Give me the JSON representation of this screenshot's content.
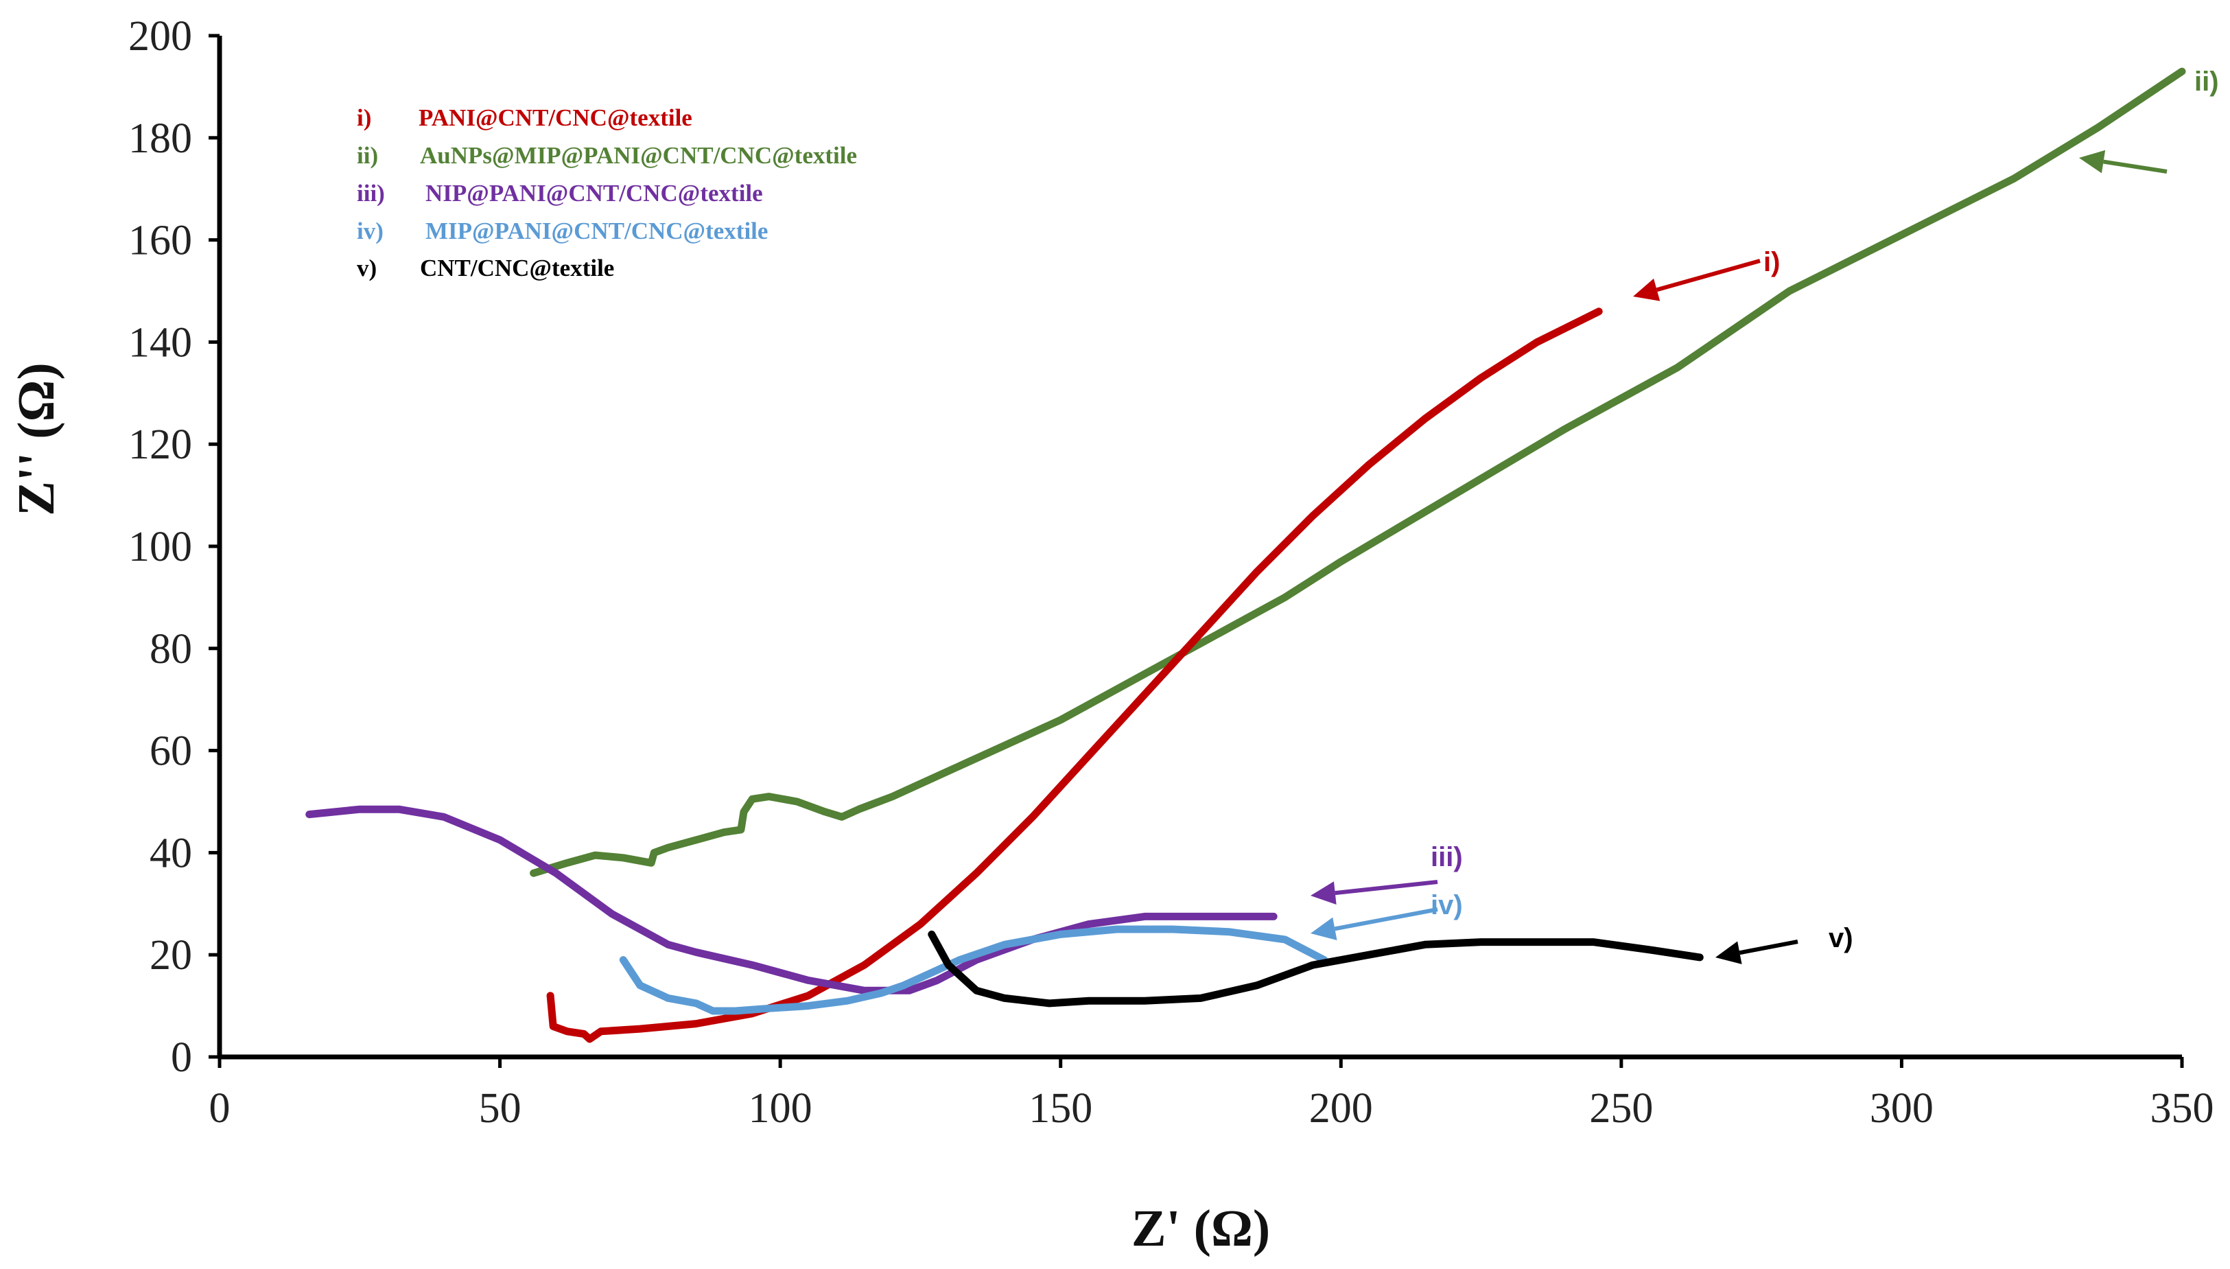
{
  "chart_data": {
    "type": "line",
    "title": "",
    "xlabel": "Z' (Ω)",
    "ylabel": "Z'' (Ω)",
    "xlim": [
      0,
      350
    ],
    "ylim": [
      0,
      200
    ],
    "xticks": [
      0,
      50,
      100,
      150,
      200,
      250,
      300,
      350
    ],
    "yticks": [
      0,
      20,
      40,
      60,
      80,
      100,
      120,
      140,
      160,
      180,
      200
    ],
    "grid": false,
    "legend_position": "top-left",
    "series": [
      {
        "id": "i",
        "label": "i)",
        "name": "PANI@CNT/CNC@textile",
        "color": "#c00000",
        "annotation": "i)",
        "points": [
          [
            59,
            12
          ],
          [
            59.5,
            6
          ],
          [
            62,
            5
          ],
          [
            65,
            4.5
          ],
          [
            66,
            3.5
          ],
          [
            68,
            5
          ],
          [
            75,
            5.5
          ],
          [
            85,
            6.5
          ],
          [
            95,
            8.5
          ],
          [
            105,
            12
          ],
          [
            115,
            18
          ],
          [
            125,
            26
          ],
          [
            135,
            36
          ],
          [
            145,
            47
          ],
          [
            155,
            59
          ],
          [
            165,
            71
          ],
          [
            175,
            83
          ],
          [
            185,
            95
          ],
          [
            195,
            106
          ],
          [
            205,
            116
          ],
          [
            215,
            125
          ],
          [
            225,
            133
          ],
          [
            235,
            140
          ],
          [
            246,
            146
          ]
        ]
      },
      {
        "id": "ii",
        "label": "ii)",
        "name": "AuNPs@MIP@PANI@CNT/CNC@textile",
        "color": "#538135",
        "annotation": "ii)",
        "points": [
          [
            56,
            36
          ],
          [
            62,
            38
          ],
          [
            67,
            39.5
          ],
          [
            72,
            39
          ],
          [
            77,
            38
          ],
          [
            77.5,
            40
          ],
          [
            80,
            41
          ],
          [
            85,
            42.5
          ],
          [
            90,
            44
          ],
          [
            93,
            44.5
          ],
          [
            93.5,
            48
          ],
          [
            95,
            50.5
          ],
          [
            98,
            51
          ],
          [
            103,
            50
          ],
          [
            108,
            48
          ],
          [
            111,
            47
          ],
          [
            114,
            48.5
          ],
          [
            120,
            51
          ],
          [
            130,
            56
          ],
          [
            140,
            61
          ],
          [
            150,
            66
          ],
          [
            160,
            72
          ],
          [
            170,
            78
          ],
          [
            180,
            84
          ],
          [
            190,
            90
          ],
          [
            200,
            97
          ],
          [
            220,
            110
          ],
          [
            240,
            123
          ],
          [
            260,
            135
          ],
          [
            280,
            150
          ],
          [
            300,
            161
          ],
          [
            320,
            172
          ],
          [
            335,
            182
          ],
          [
            350,
            193
          ]
        ]
      },
      {
        "id": "iii",
        "label": "iii)",
        "name": "NIP@PANI@CNT/CNC@textile",
        "color": "#7030a0",
        "annotation": "iii)",
        "points": [
          [
            16,
            47.5
          ],
          [
            25,
            48.5
          ],
          [
            32,
            48.5
          ],
          [
            40,
            47
          ],
          [
            50,
            42.5
          ],
          [
            60,
            36
          ],
          [
            70,
            28
          ],
          [
            80,
            22
          ],
          [
            85,
            20.5
          ],
          [
            95,
            18
          ],
          [
            105,
            15
          ],
          [
            115,
            13
          ],
          [
            123,
            13
          ],
          [
            128,
            15
          ],
          [
            135,
            19
          ],
          [
            145,
            23
          ],
          [
            155,
            26
          ],
          [
            165,
            27.5
          ],
          [
            175,
            27.5
          ],
          [
            188,
            27.5
          ]
        ]
      },
      {
        "id": "iv",
        "label": "iv)",
        "name": "MIP@PANI@CNT/CNC@textile",
        "color": "#5b9bd5",
        "annotation": "iv)",
        "points": [
          [
            72,
            19
          ],
          [
            75,
            14
          ],
          [
            80,
            11.5
          ],
          [
            85,
            10.5
          ],
          [
            88,
            9
          ],
          [
            92,
            9
          ],
          [
            98,
            9.5
          ],
          [
            105,
            10
          ],
          [
            112,
            11
          ],
          [
            118,
            12.5
          ],
          [
            122,
            14
          ],
          [
            126,
            16
          ],
          [
            132,
            19
          ],
          [
            140,
            22
          ],
          [
            150,
            24
          ],
          [
            160,
            25
          ],
          [
            170,
            25
          ],
          [
            180,
            24.5
          ],
          [
            190,
            23
          ],
          [
            197,
            19
          ]
        ]
      },
      {
        "id": "v",
        "label": "v)",
        "name": "CNT/CNC@textile",
        "color": "#000000",
        "annotation": "v)",
        "points": [
          [
            127,
            24
          ],
          [
            130,
            18
          ],
          [
            135,
            13
          ],
          [
            140,
            11.5
          ],
          [
            148,
            10.5
          ],
          [
            155,
            11
          ],
          [
            165,
            11
          ],
          [
            175,
            11.5
          ],
          [
            185,
            14
          ],
          [
            195,
            18
          ],
          [
            205,
            20
          ],
          [
            215,
            22
          ],
          [
            225,
            22.5
          ],
          [
            235,
            22.5
          ],
          [
            245,
            22.5
          ],
          [
            255,
            21
          ],
          [
            264,
            19.5
          ]
        ]
      }
    ]
  },
  "legend": {
    "items": [
      {
        "num": "i)",
        "name": "PANI@CNT/CNC@textile",
        "color": "#c00000"
      },
      {
        "num": "ii)",
        "name": "AuNPs@MIP@PANI@CNT/CNC@textile",
        "color": "#538135"
      },
      {
        "num": "iii)",
        "name": "NIP@PANI@CNT/CNC@textile",
        "color": "#7030a0"
      },
      {
        "num": "iv)",
        "name": "MIP@PANI@CNT/CNC@textile",
        "color": "#5b9bd5"
      },
      {
        "num": "v)",
        "name": "CNT/CNC@textile",
        "color": "#000000"
      }
    ]
  }
}
